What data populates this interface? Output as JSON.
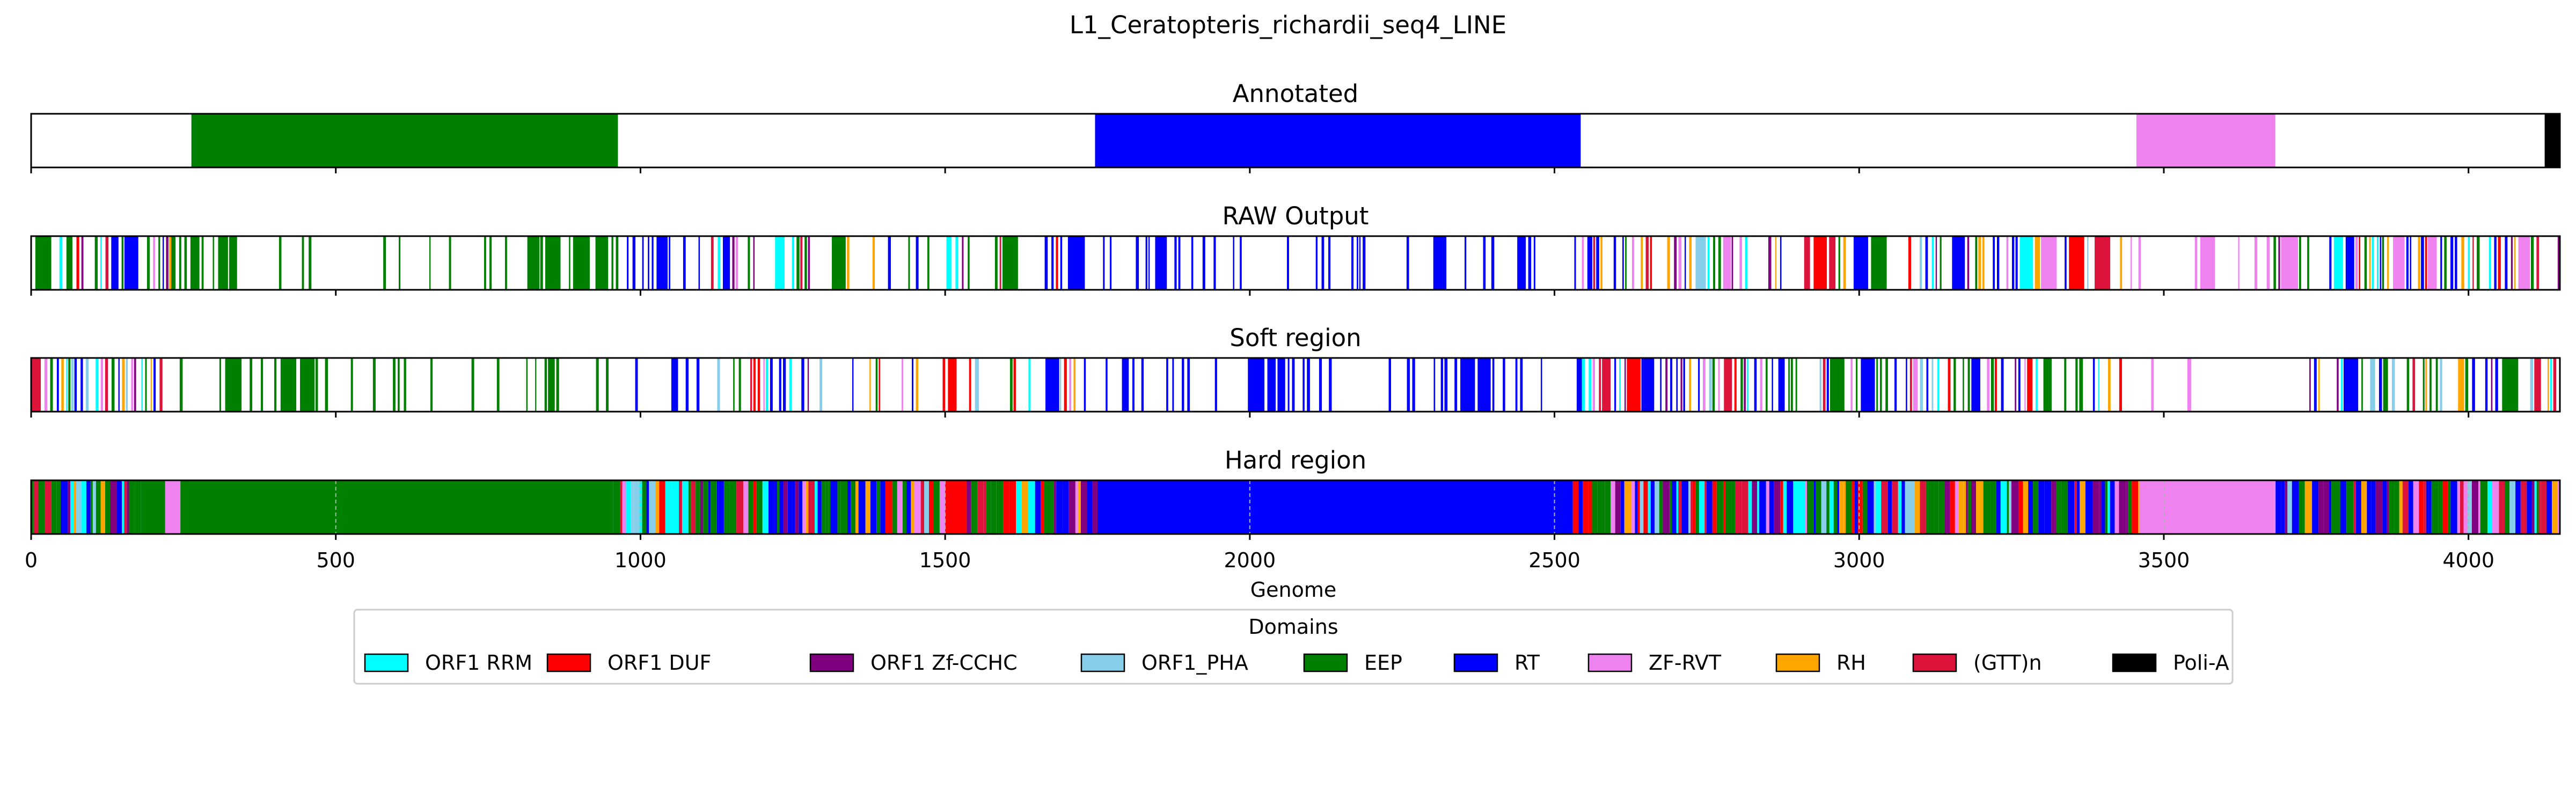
{
  "chart_data": {
    "type": "track",
    "title": "L1_Ceratopteris_richardii_seq4_LINE",
    "xlabel": "Genome",
    "xlim": [
      0,
      4150
    ],
    "xticks": [
      0,
      500,
      1000,
      1500,
      2000,
      2500,
      3000,
      3500,
      4000
    ],
    "legend": {
      "title": "Domains",
      "placement": "bottom-center",
      "entries": [
        {
          "name": "ORF1 RRM",
          "color": "#00ffff"
        },
        {
          "name": "ORF1 DUF",
          "color": "#ff0000"
        },
        {
          "name": "ORF1 Zf-CCHC",
          "color": "#800080"
        },
        {
          "name": "ORF1_PHA",
          "color": "#87ceeb"
        },
        {
          "name": "EEP",
          "color": "#008000"
        },
        {
          "name": "RT",
          "color": "#0000ff"
        },
        {
          "name": "ZF-RVT",
          "color": "#ee82ee"
        },
        {
          "name": "RH",
          "color": "#ffa500"
        },
        {
          "name": "(GTT)n",
          "color": "#dc143c"
        },
        {
          "name": "Poli-A",
          "color": "#000000"
        }
      ]
    },
    "panels": [
      {
        "title": "Annotated",
        "grid": false,
        "segments": [
          {
            "start": 263,
            "end": 963,
            "domain": "EEP"
          },
          {
            "start": 1746,
            "end": 2543,
            "domain": "RT"
          },
          {
            "start": 3455,
            "end": 3683,
            "domain": "ZF-RVT"
          },
          {
            "start": 4125,
            "end": 4150,
            "domain": "Poli-A"
          }
        ]
      },
      {
        "title": "RAW Output",
        "grid": false,
        "composition": [
          {
            "from": 0,
            "to": 230,
            "domain": "mixed",
            "density": 0.8
          },
          {
            "from": 230,
            "to": 970,
            "domain": "EEP",
            "density": 0.45
          },
          {
            "from": 970,
            "to": 1100,
            "domain": "RT",
            "density": 0.4
          },
          {
            "from": 1100,
            "to": 1750,
            "domain": "mixed",
            "density": 0.45
          },
          {
            "from": 1750,
            "to": 2545,
            "domain": "RT",
            "density": 0.45
          },
          {
            "from": 2545,
            "to": 3440,
            "domain": "mixed",
            "density": 0.7
          },
          {
            "from": 3440,
            "to": 3680,
            "domain": "ZF-RVT",
            "density": 0.25
          },
          {
            "from": 3680,
            "to": 4150,
            "domain": "mixed",
            "density": 0.75
          }
        ]
      },
      {
        "title": "Soft region",
        "grid": false,
        "composition": [
          {
            "from": 0,
            "to": 230,
            "domain": "mixed",
            "density": 0.8
          },
          {
            "from": 230,
            "to": 970,
            "domain": "EEP",
            "density": 0.45
          },
          {
            "from": 970,
            "to": 1100,
            "domain": "RT",
            "density": 0.45
          },
          {
            "from": 1100,
            "to": 1750,
            "domain": "mixed",
            "density": 0.45
          },
          {
            "from": 1750,
            "to": 2545,
            "domain": "RT",
            "density": 0.45
          },
          {
            "from": 2545,
            "to": 3440,
            "domain": "mixed",
            "density": 0.7
          },
          {
            "from": 3440,
            "to": 3680,
            "domain": "ZF-RVT",
            "density": 0.25
          },
          {
            "from": 3680,
            "to": 4150,
            "domain": "mixed",
            "density": 0.75
          }
        ]
      },
      {
        "title": "Hard region",
        "grid": true,
        "composition": [
          {
            "from": 0,
            "to": 180,
            "domain": "mixed",
            "density": 1.0
          },
          {
            "from": 180,
            "to": 220,
            "domain": "EEP",
            "density": 1.0
          },
          {
            "from": 220,
            "to": 245,
            "domain": "ZF-RVT",
            "density": 1.0
          },
          {
            "from": 245,
            "to": 955,
            "domain": "EEP",
            "density": 1.0
          },
          {
            "from": 955,
            "to": 1500,
            "domain": "mixed",
            "density": 1.0
          },
          {
            "from": 1500,
            "to": 1535,
            "domain": "ORF1 DUF",
            "density": 1.0
          },
          {
            "from": 1535,
            "to": 1750,
            "domain": "mixed",
            "density": 1.0
          },
          {
            "from": 1750,
            "to": 2530,
            "domain": "RT",
            "density": 1.0
          },
          {
            "from": 2530,
            "to": 3460,
            "domain": "mixed",
            "density": 1.0
          },
          {
            "from": 3460,
            "to": 3680,
            "domain": "ZF-RVT",
            "density": 1.0
          },
          {
            "from": 3680,
            "to": 4150,
            "domain": "mixed",
            "density": 1.0
          }
        ]
      }
    ]
  }
}
